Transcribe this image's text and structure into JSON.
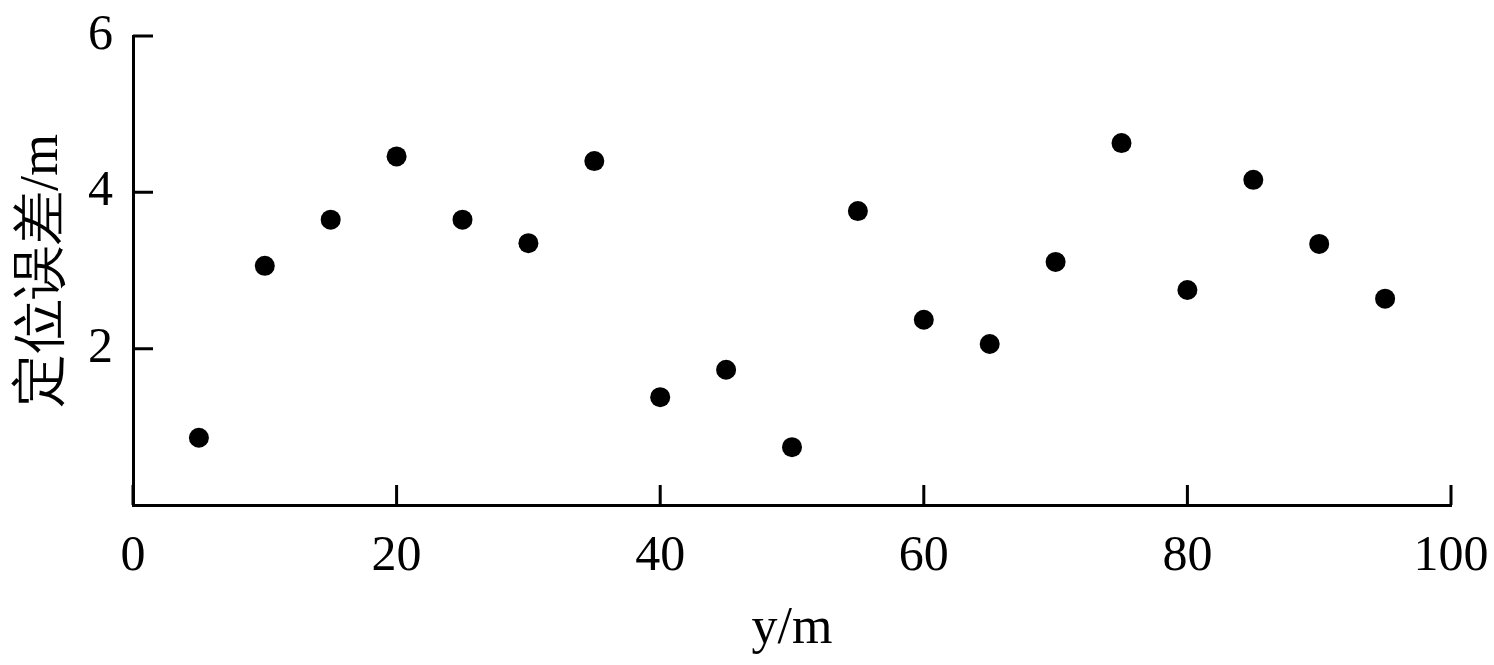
{
  "chart_data": {
    "type": "scatter",
    "xlabel": "y/m",
    "ylabel": "定位误差/m",
    "x": [
      5,
      10,
      15,
      20,
      25,
      30,
      35,
      40,
      45,
      50,
      55,
      60,
      65,
      70,
      75,
      80,
      85,
      90,
      95
    ],
    "values": [
      0.86,
      3.06,
      3.65,
      4.46,
      3.65,
      3.35,
      4.4,
      1.38,
      1.73,
      0.74,
      3.76,
      2.37,
      2.06,
      3.11,
      4.63,
      2.75,
      4.16,
      3.34,
      2.64
    ],
    "color": "#000000",
    "marker": "circle",
    "xlim": [
      0,
      100
    ],
    "xticks": [
      0,
      20,
      40,
      60,
      80,
      100
    ],
    "ylim": [
      0,
      6
    ],
    "yticks": [
      2,
      4,
      6
    ]
  }
}
